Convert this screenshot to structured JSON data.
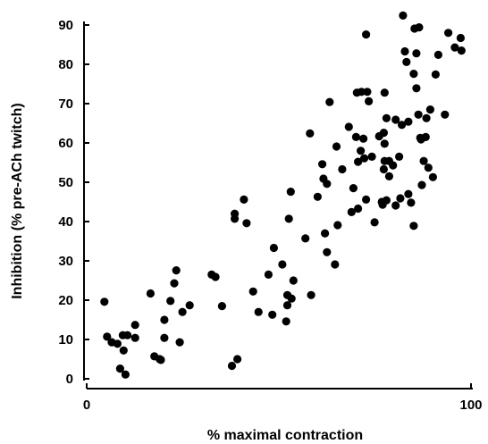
{
  "chart_data": {
    "type": "scatter",
    "title": "",
    "xlabel": "% maximal contraction",
    "ylabel": "Inhibition (% pre-ACh twitch)",
    "xlim": [
      0,
      100
    ],
    "ylim": [
      0,
      90
    ],
    "x_ticks": [
      0,
      100
    ],
    "y_ticks": [
      0,
      10,
      20,
      30,
      40,
      50,
      60,
      70,
      80,
      90
    ],
    "grid": false,
    "legend": "none",
    "point_color": "#000000",
    "points": [
      {
        "x": 4.6,
        "y": 19.6
      },
      {
        "x": 5.3,
        "y": 10.7
      },
      {
        "x": 6.5,
        "y": 9.3
      },
      {
        "x": 8.0,
        "y": 8.9
      },
      {
        "x": 8.7,
        "y": 2.6
      },
      {
        "x": 9.4,
        "y": 11.1
      },
      {
        "x": 10.1,
        "y": 1.1
      },
      {
        "x": 10.6,
        "y": 11.1
      },
      {
        "x": 9.6,
        "y": 7.2
      },
      {
        "x": 12.6,
        "y": 13.7
      },
      {
        "x": 12.6,
        "y": 10.4
      },
      {
        "x": 16.6,
        "y": 21.7
      },
      {
        "x": 17.6,
        "y": 5.7
      },
      {
        "x": 19.0,
        "y": 5.0
      },
      {
        "x": 19.3,
        "y": 4.8
      },
      {
        "x": 20.2,
        "y": 15.0
      },
      {
        "x": 20.2,
        "y": 10.4
      },
      {
        "x": 21.8,
        "y": 19.8
      },
      {
        "x": 22.8,
        "y": 24.3
      },
      {
        "x": 23.3,
        "y": 27.6
      },
      {
        "x": 24.2,
        "y": 9.3
      },
      {
        "x": 24.9,
        "y": 17.0
      },
      {
        "x": 26.8,
        "y": 18.7
      },
      {
        "x": 32.5,
        "y": 26.5
      },
      {
        "x": 33.5,
        "y": 25.9
      },
      {
        "x": 35.2,
        "y": 18.5
      },
      {
        "x": 37.8,
        "y": 3.3
      },
      {
        "x": 38.5,
        "y": 42.0
      },
      {
        "x": 38.5,
        "y": 40.7
      },
      {
        "x": 39.2,
        "y": 5.0
      },
      {
        "x": 40.9,
        "y": 45.6
      },
      {
        "x": 41.6,
        "y": 39.6
      },
      {
        "x": 43.3,
        "y": 22.2
      },
      {
        "x": 44.7,
        "y": 17.0
      },
      {
        "x": 47.3,
        "y": 26.5
      },
      {
        "x": 48.3,
        "y": 16.3
      },
      {
        "x": 48.7,
        "y": 33.3
      },
      {
        "x": 50.9,
        "y": 29.1
      },
      {
        "x": 52.2,
        "y": 21.3
      },
      {
        "x": 52.2,
        "y": 18.7
      },
      {
        "x": 51.9,
        "y": 14.6
      },
      {
        "x": 52.6,
        "y": 40.7
      },
      {
        "x": 53.1,
        "y": 47.6
      },
      {
        "x": 53.3,
        "y": 20.4
      },
      {
        "x": 53.8,
        "y": 25.0
      },
      {
        "x": 56.9,
        "y": 35.7
      },
      {
        "x": 58.1,
        "y": 62.4
      },
      {
        "x": 58.4,
        "y": 21.3
      },
      {
        "x": 60.1,
        "y": 46.3
      },
      {
        "x": 61.3,
        "y": 54.6
      },
      {
        "x": 61.6,
        "y": 50.9
      },
      {
        "x": 62.0,
        "y": 37.0
      },
      {
        "x": 62.5,
        "y": 32.2
      },
      {
        "x": 62.5,
        "y": 49.6
      },
      {
        "x": 63.2,
        "y": 70.4
      },
      {
        "x": 64.6,
        "y": 29.1
      },
      {
        "x": 65.0,
        "y": 59.1
      },
      {
        "x": 65.3,
        "y": 39.1
      },
      {
        "x": 66.5,
        "y": 53.3
      },
      {
        "x": 68.2,
        "y": 64.1
      },
      {
        "x": 68.9,
        "y": 42.4
      },
      {
        "x": 69.4,
        "y": 48.5
      },
      {
        "x": 70.1,
        "y": 61.5
      },
      {
        "x": 70.3,
        "y": 72.8
      },
      {
        "x": 70.6,
        "y": 43.3
      },
      {
        "x": 70.6,
        "y": 55.2
      },
      {
        "x": 71.3,
        "y": 58.0
      },
      {
        "x": 71.5,
        "y": 73.0
      },
      {
        "x": 72.0,
        "y": 61.1
      },
      {
        "x": 72.2,
        "y": 56.1
      },
      {
        "x": 72.7,
        "y": 45.6
      },
      {
        "x": 72.7,
        "y": 87.6
      },
      {
        "x": 73.0,
        "y": 73.0
      },
      {
        "x": 73.4,
        "y": 70.6
      },
      {
        "x": 74.2,
        "y": 56.5
      },
      {
        "x": 74.9,
        "y": 39.8
      },
      {
        "x": 76.1,
        "y": 61.7
      },
      {
        "x": 76.8,
        "y": 45.0
      },
      {
        "x": 77.0,
        "y": 44.3
      },
      {
        "x": 77.3,
        "y": 62.6
      },
      {
        "x": 77.3,
        "y": 53.3
      },
      {
        "x": 77.5,
        "y": 55.4
      },
      {
        "x": 77.5,
        "y": 59.8
      },
      {
        "x": 77.5,
        "y": 72.8
      },
      {
        "x": 78.0,
        "y": 45.4
      },
      {
        "x": 78.0,
        "y": 66.3
      },
      {
        "x": 78.7,
        "y": 51.5
      },
      {
        "x": 78.7,
        "y": 55.4
      },
      {
        "x": 79.7,
        "y": 54.3
      },
      {
        "x": 80.4,
        "y": 65.9
      },
      {
        "x": 80.4,
        "y": 44.1
      },
      {
        "x": 81.3,
        "y": 56.5
      },
      {
        "x": 81.6,
        "y": 45.9
      },
      {
        "x": 82.0,
        "y": 64.6
      },
      {
        "x": 82.3,
        "y": 92.4
      },
      {
        "x": 82.8,
        "y": 83.3
      },
      {
        "x": 83.2,
        "y": 80.6
      },
      {
        "x": 83.7,
        "y": 65.4
      },
      {
        "x": 83.7,
        "y": 47.0
      },
      {
        "x": 84.4,
        "y": 44.8
      },
      {
        "x": 85.1,
        "y": 77.6
      },
      {
        "x": 85.1,
        "y": 38.9
      },
      {
        "x": 85.3,
        "y": 89.1
      },
      {
        "x": 85.8,
        "y": 73.9
      },
      {
        "x": 85.8,
        "y": 82.8
      },
      {
        "x": 86.3,
        "y": 67.2
      },
      {
        "x": 86.5,
        "y": 89.4
      },
      {
        "x": 86.8,
        "y": 61.3
      },
      {
        "x": 87.0,
        "y": 60.9
      },
      {
        "x": 87.2,
        "y": 49.3
      },
      {
        "x": 87.7,
        "y": 55.4
      },
      {
        "x": 88.2,
        "y": 61.5
      },
      {
        "x": 88.4,
        "y": 66.3
      },
      {
        "x": 88.9,
        "y": 53.7
      },
      {
        "x": 89.4,
        "y": 68.5
      },
      {
        "x": 90.1,
        "y": 51.3
      },
      {
        "x": 90.8,
        "y": 77.4
      },
      {
        "x": 91.5,
        "y": 82.4
      },
      {
        "x": 93.2,
        "y": 67.2
      },
      {
        "x": 94.1,
        "y": 88.0
      },
      {
        "x": 95.8,
        "y": 84.3
      },
      {
        "x": 97.3,
        "y": 86.7
      },
      {
        "x": 97.5,
        "y": 83.5
      }
    ]
  }
}
